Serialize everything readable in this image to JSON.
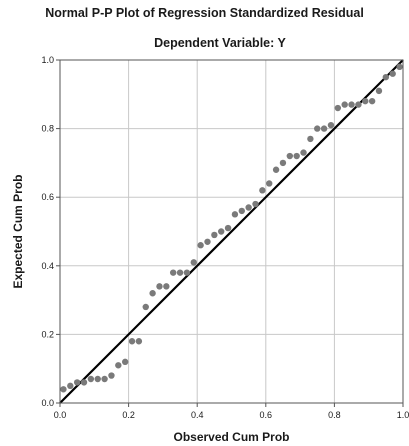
{
  "chart_data": {
    "type": "scatter",
    "title": "Normal P-P Plot of Regression Standardized Residual",
    "subtitle": "Dependent Variable: Y",
    "xlabel": "Observed Cum Prob",
    "ylabel": "Expected Cum Prob",
    "xlim": [
      0,
      1
    ],
    "ylim": [
      0,
      1
    ],
    "x_ticks": [
      "0.0",
      "0.2",
      "0.4",
      "0.6",
      "0.8",
      "1.0"
    ],
    "y_ticks": [
      "0.0",
      "0.2",
      "0.4",
      "0.6",
      "0.8",
      "1.0"
    ],
    "grid": true,
    "reference_line": {
      "from": [
        0,
        0
      ],
      "to": [
        1,
        1
      ]
    },
    "colors": {
      "points": "#7a7a7a",
      "line": "#000000",
      "grid": "#c8c8c8",
      "frame": "#555555"
    },
    "points": [
      [
        0.01,
        0.04
      ],
      [
        0.03,
        0.05
      ],
      [
        0.05,
        0.06
      ],
      [
        0.07,
        0.06
      ],
      [
        0.09,
        0.07
      ],
      [
        0.11,
        0.07
      ],
      [
        0.13,
        0.07
      ],
      [
        0.15,
        0.08
      ],
      [
        0.17,
        0.11
      ],
      [
        0.19,
        0.12
      ],
      [
        0.21,
        0.18
      ],
      [
        0.23,
        0.18
      ],
      [
        0.25,
        0.28
      ],
      [
        0.27,
        0.32
      ],
      [
        0.29,
        0.34
      ],
      [
        0.31,
        0.34
      ],
      [
        0.33,
        0.38
      ],
      [
        0.35,
        0.38
      ],
      [
        0.37,
        0.38
      ],
      [
        0.39,
        0.41
      ],
      [
        0.41,
        0.46
      ],
      [
        0.43,
        0.47
      ],
      [
        0.45,
        0.49
      ],
      [
        0.47,
        0.5
      ],
      [
        0.49,
        0.51
      ],
      [
        0.51,
        0.55
      ],
      [
        0.53,
        0.56
      ],
      [
        0.55,
        0.57
      ],
      [
        0.57,
        0.58
      ],
      [
        0.59,
        0.62
      ],
      [
        0.61,
        0.64
      ],
      [
        0.63,
        0.68
      ],
      [
        0.65,
        0.7
      ],
      [
        0.67,
        0.72
      ],
      [
        0.69,
        0.72
      ],
      [
        0.71,
        0.73
      ],
      [
        0.73,
        0.77
      ],
      [
        0.75,
        0.8
      ],
      [
        0.77,
        0.8
      ],
      [
        0.79,
        0.81
      ],
      [
        0.81,
        0.86
      ],
      [
        0.83,
        0.87
      ],
      [
        0.85,
        0.87
      ],
      [
        0.87,
        0.87
      ],
      [
        0.89,
        0.88
      ],
      [
        0.91,
        0.88
      ],
      [
        0.93,
        0.91
      ],
      [
        0.95,
        0.95
      ],
      [
        0.97,
        0.96
      ],
      [
        0.99,
        0.98
      ]
    ]
  }
}
